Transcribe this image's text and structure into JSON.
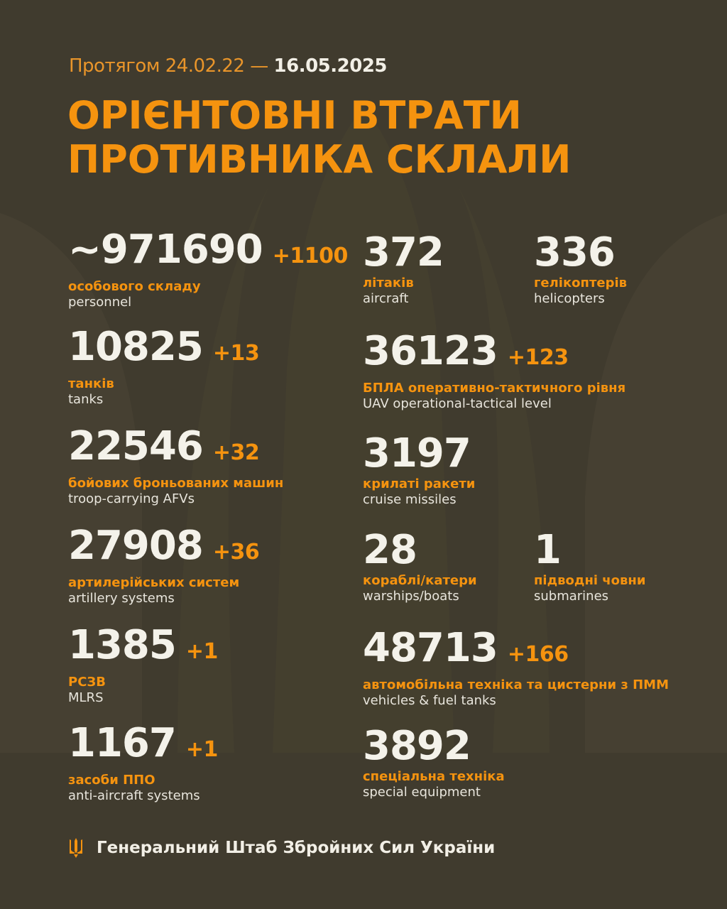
{
  "header": {
    "period_prefix": "Протягом 24.02.22 —",
    "period_end": "16.05.2025",
    "title_line1": "ОРІЄНТОВНІ ВТРАТИ",
    "title_line2": "ПРОТИВНИКА СКЛАЛИ"
  },
  "left": [
    {
      "value": "~971690",
      "delta": "+1100",
      "ua": "особового складу",
      "en": "personnel"
    },
    {
      "value": "10825",
      "delta": "+13",
      "ua": "танків",
      "en": "tanks"
    },
    {
      "value": "22546",
      "delta": "+32",
      "ua": "бойових броньованих машин",
      "en": "troop-carrying AFVs"
    },
    {
      "value": "27908",
      "delta": "+36",
      "ua": "артилерійських систем",
      "en": "artillery systems"
    },
    {
      "value": "1385",
      "delta": "+1",
      "ua": "РСЗВ",
      "en": "MLRS"
    },
    {
      "value": "1167",
      "delta": "+1",
      "ua": "засоби ППО",
      "en": "anti-aircraft systems"
    }
  ],
  "right": [
    {
      "value": "372",
      "delta": "",
      "ua": "літаків",
      "en": "aircraft"
    },
    {
      "value": "336",
      "delta": "",
      "ua": "гелікоптерів",
      "en": "helicopters"
    },
    {
      "value": "36123",
      "delta": "+123",
      "ua": "БПЛА оперативно-тактичного рівня",
      "en": "UAV operational-tactical level"
    },
    {
      "value": "3197",
      "delta": "",
      "ua": "крилаті ракети",
      "en": "cruise missiles"
    },
    {
      "value": "28",
      "delta": "",
      "ua": "кораблі/катери",
      "en": "warships/boats"
    },
    {
      "value": "1",
      "delta": "",
      "ua": "підводні човни",
      "en": "submarines"
    },
    {
      "value": "48713",
      "delta": "+166",
      "ua": "автомобільна техніка та цистерни з ПММ",
      "en": "vehicles & fuel tanks"
    },
    {
      "value": "3892",
      "delta": "",
      "ua": "спеціальна техніка",
      "en": "special equipment"
    }
  ],
  "footer": {
    "text": "Генеральний Штаб Збройних Сил України",
    "icon": "trident-icon"
  },
  "colors": {
    "background": "#403b2e",
    "accent": "#f5930f",
    "text": "#f4f2ea"
  }
}
